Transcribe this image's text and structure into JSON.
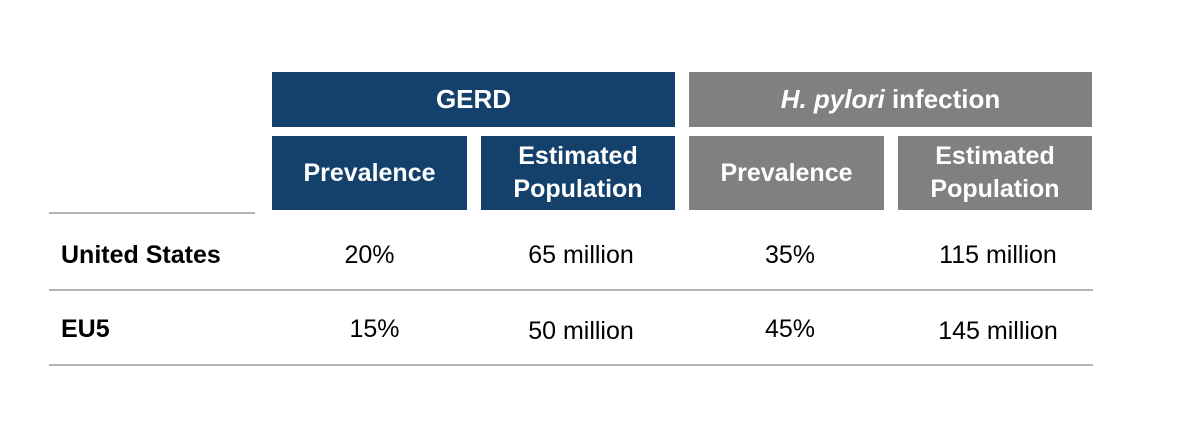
{
  "table": {
    "groups": [
      {
        "label_em": "",
        "label": "GERD",
        "color": "#14406c"
      },
      {
        "label_em": "H. pylori",
        "label": " infection",
        "color": "#808080"
      }
    ],
    "subheaders": [
      {
        "line1": "Prevalence",
        "line2": ""
      },
      {
        "line1": "Estimated",
        "line2": "Population"
      },
      {
        "line1": "Prevalence",
        "line2": ""
      },
      {
        "line1": "Estimated",
        "line2": "Population"
      }
    ],
    "rows": [
      {
        "label": "United States",
        "values": [
          "20%",
          "65 million",
          "35%",
          "115 million"
        ]
      },
      {
        "label": "EU5",
        "values": [
          "15%",
          "50 million",
          "45%",
          "145 million"
        ]
      }
    ]
  }
}
